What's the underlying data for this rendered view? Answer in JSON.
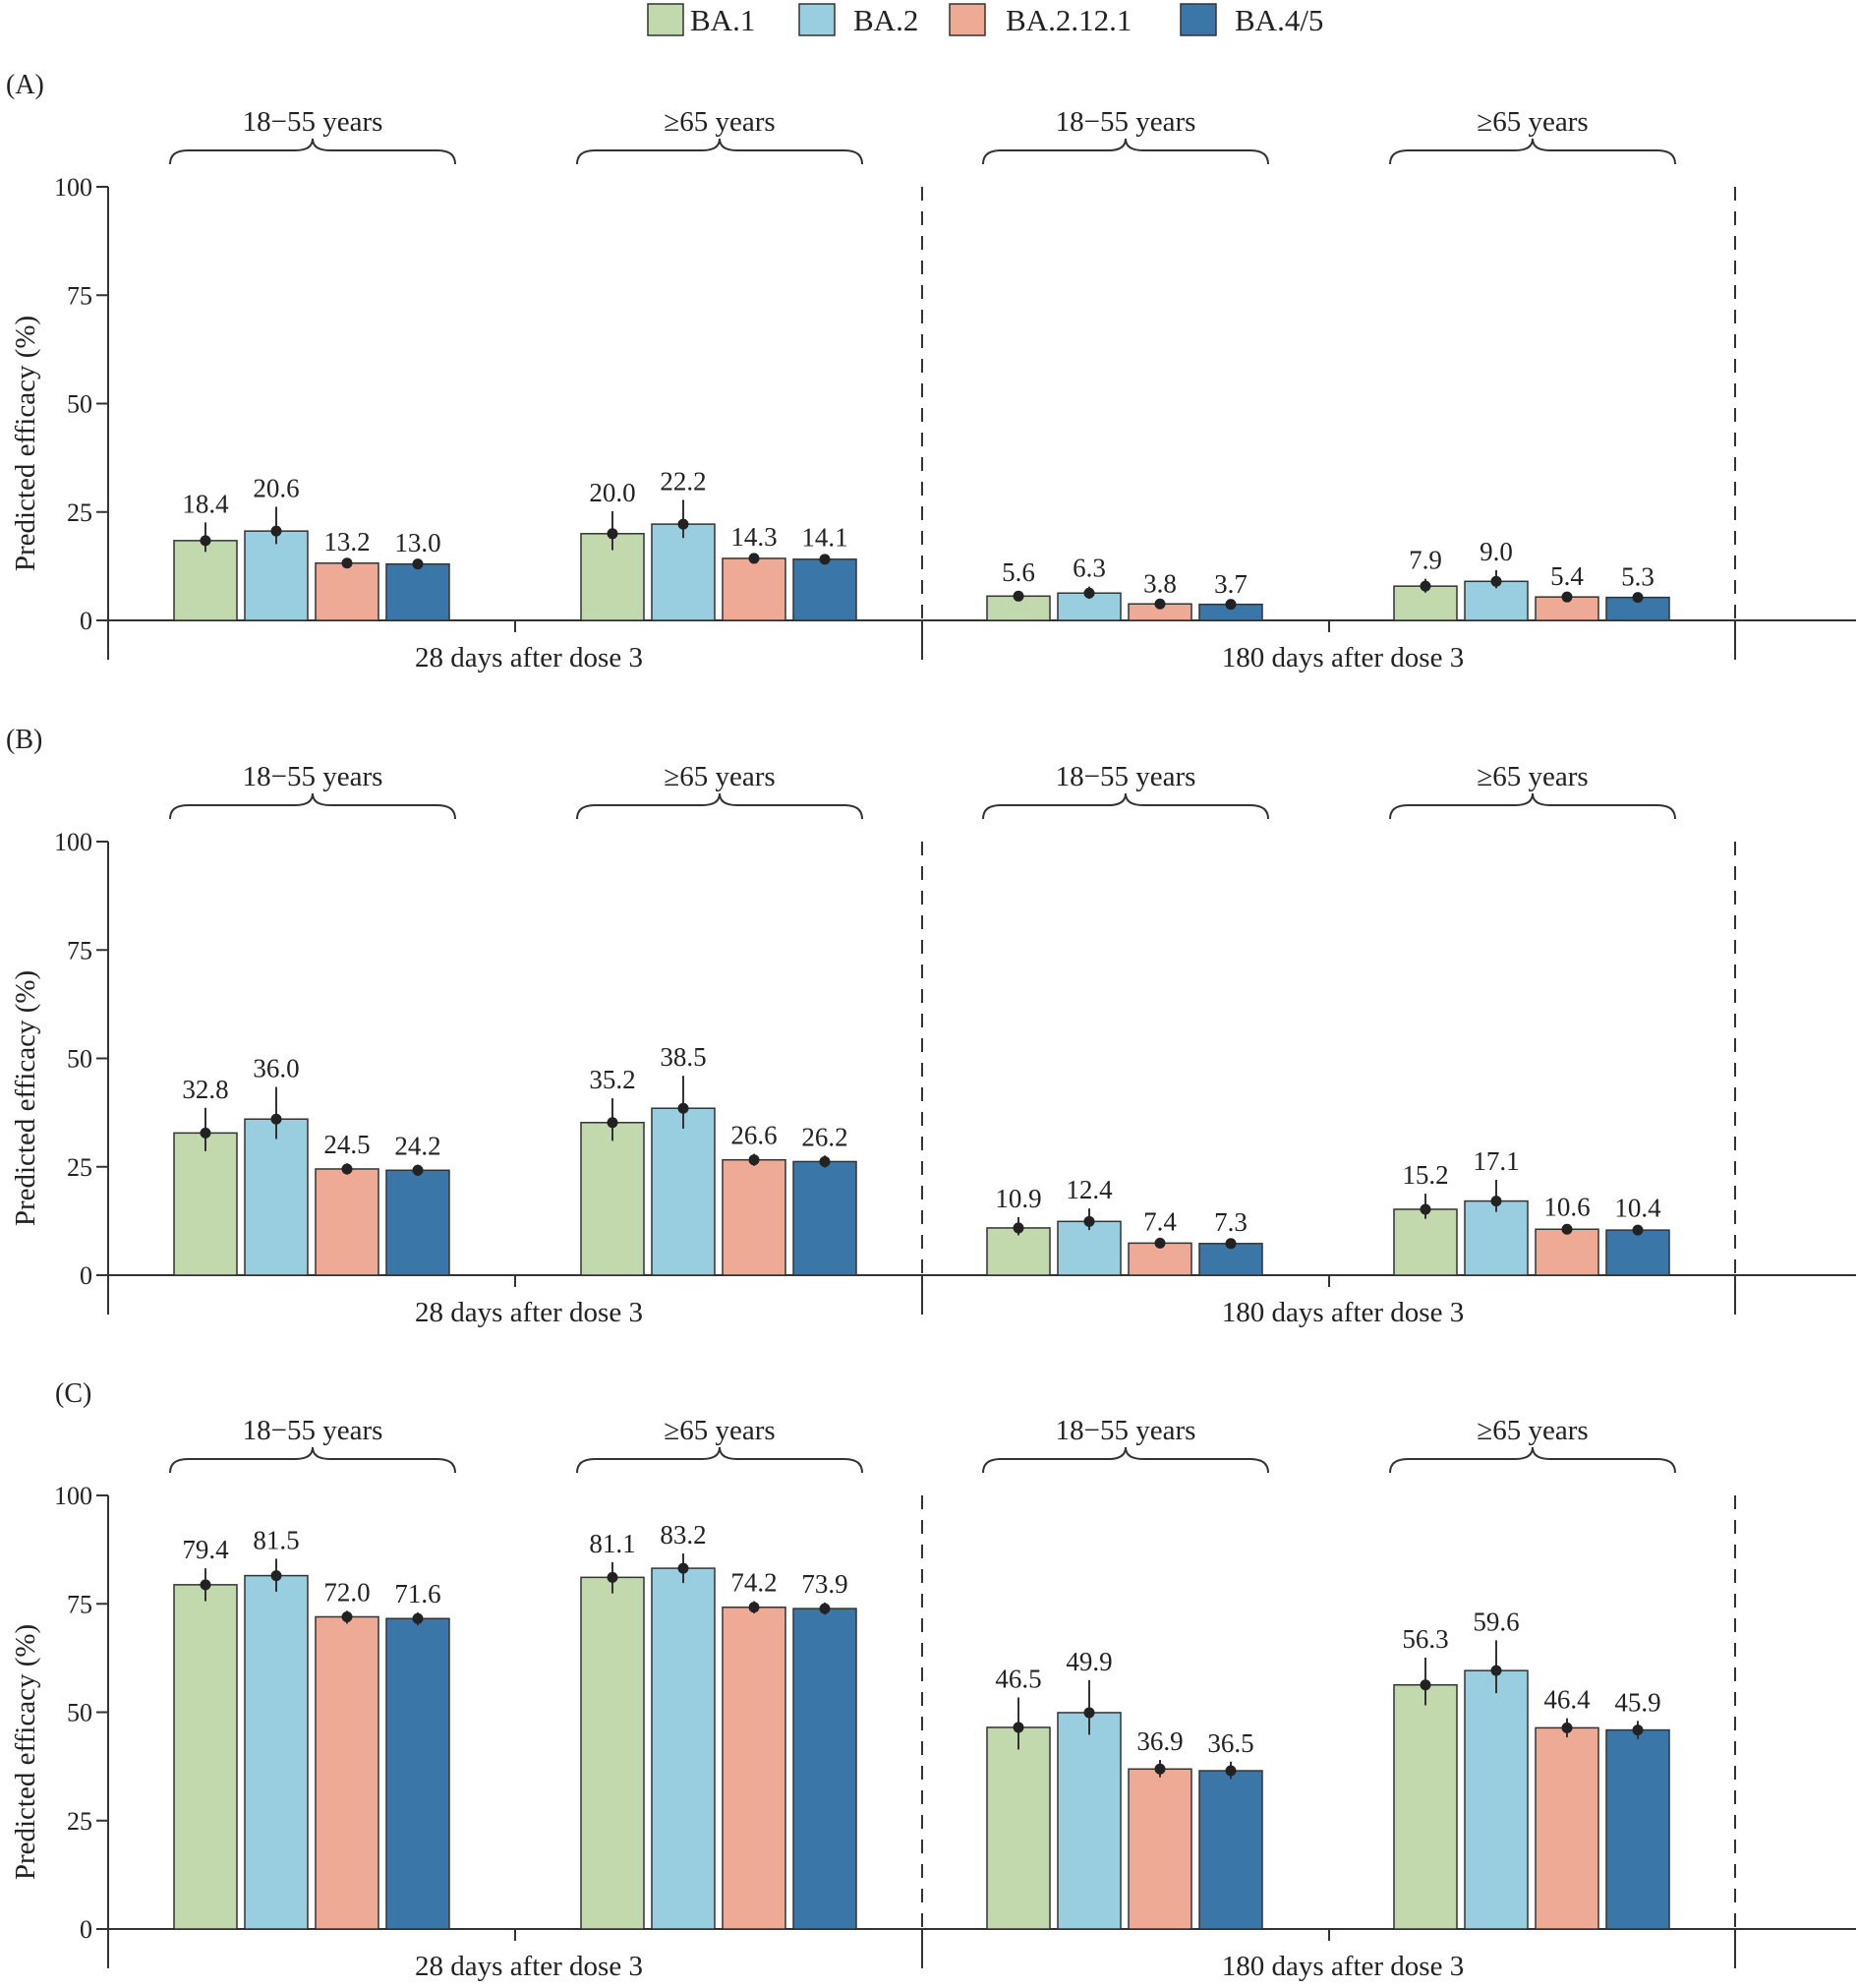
{
  "chart_data": {
    "type": "bar",
    "legend": {
      "placement": "top-center",
      "entries": [
        {
          "name": "BA.1",
          "color": "#c2d9ad"
        },
        {
          "name": "BA.2",
          "color": "#99cde0"
        },
        {
          "name": "BA.2.12.1",
          "color": "#eeaa95"
        },
        {
          "name": "BA.4/5",
          "color": "#3a77a8"
        }
      ]
    },
    "ylabel": "Predicted efficacy (%)",
    "ylim": [
      0,
      100
    ],
    "yticks": [
      0,
      25,
      50,
      75,
      100
    ],
    "sections": [
      "28 days after dose 3",
      "180 days after dose 3"
    ],
    "age_groups": [
      "18−55 years",
      "≥65 years"
    ],
    "panels": [
      {
        "label": "(A)",
        "groups": [
          {
            "section": "28 days after dose 3",
            "age": "18−55 years",
            "values": [
              18.4,
              20.6,
              13.2,
              13.0
            ],
            "ci": [
              [
                15.8,
                22.6
              ],
              [
                17.6,
                26.2
              ],
              [
                12.6,
                13.8
              ],
              [
                12.4,
                13.6
              ]
            ]
          },
          {
            "section": "28 days after dose 3",
            "age": "≥65 years",
            "values": [
              20.0,
              22.2,
              14.3,
              14.1
            ],
            "ci": [
              [
                16.2,
                25.2
              ],
              [
                19.0,
                27.8
              ],
              [
                13.6,
                15.0
              ],
              [
                13.4,
                14.8
              ]
            ]
          },
          {
            "section": "180 days after dose 3",
            "age": "18−55 years",
            "values": [
              5.6,
              6.3,
              3.8,
              3.7
            ],
            "ci": [
              [
                4.6,
                6.8
              ],
              [
                5.0,
                7.8
              ],
              [
                3.4,
                4.2
              ],
              [
                3.3,
                4.1
              ]
            ]
          },
          {
            "section": "180 days after dose 3",
            "age": "≥65 years",
            "values": [
              7.9,
              9.0,
              5.4,
              5.3
            ],
            "ci": [
              [
                6.4,
                9.6
              ],
              [
                7.4,
                11.6
              ],
              [
                4.9,
                5.9
              ],
              [
                4.8,
                5.8
              ]
            ]
          }
        ]
      },
      {
        "label": "(B)",
        "groups": [
          {
            "section": "28 days after dose 3",
            "age": "18−55 years",
            "values": [
              32.8,
              36.0,
              24.5,
              24.2
            ],
            "ci": [
              [
                28.6,
                38.6
              ],
              [
                31.4,
                43.4
              ],
              [
                23.2,
                25.8
              ],
              [
                22.9,
                25.5
              ]
            ]
          },
          {
            "section": "28 days after dose 3",
            "age": "≥65 years",
            "values": [
              35.2,
              38.5,
              26.6,
              26.2
            ],
            "ci": [
              [
                31.0,
                40.8
              ],
              [
                33.8,
                46.0
              ],
              [
                25.2,
                28.0
              ],
              [
                24.8,
                27.6
              ]
            ]
          },
          {
            "section": "180 days after dose 3",
            "age": "18−55 years",
            "values": [
              10.9,
              12.4,
              7.4,
              7.3
            ],
            "ci": [
              [
                9.2,
                13.4
              ],
              [
                10.4,
                15.4
              ],
              [
                6.8,
                8.0
              ],
              [
                6.7,
                7.9
              ]
            ]
          },
          {
            "section": "180 days after dose 3",
            "age": "≥65 years",
            "values": [
              15.2,
              17.1,
              10.6,
              10.4
            ],
            "ci": [
              [
                13.0,
                18.8
              ],
              [
                14.6,
                22.0
              ],
              [
                9.8,
                11.4
              ],
              [
                9.6,
                11.2
              ]
            ]
          }
        ]
      },
      {
        "label": "(C)",
        "groups": [
          {
            "section": "28 days after dose 3",
            "age": "18−55 years",
            "values": [
              79.4,
              81.5,
              72.0,
              71.6
            ],
            "ci": [
              [
                75.6,
                83.2
              ],
              [
                77.8,
                85.4
              ],
              [
                70.4,
                73.4
              ],
              [
                70.0,
                73.0
              ]
            ]
          },
          {
            "section": "28 days after dose 3",
            "age": "≥65 years",
            "values": [
              81.1,
              83.2,
              74.2,
              73.9
            ],
            "ci": [
              [
                77.4,
                84.6
              ],
              [
                79.8,
                86.6
              ],
              [
                72.8,
                75.6
              ],
              [
                72.5,
                75.3
              ]
            ]
          },
          {
            "section": "180 days after dose 3",
            "age": "18−55 years",
            "values": [
              46.5,
              49.9,
              36.9,
              36.5
            ],
            "ci": [
              [
                41.4,
                53.4
              ],
              [
                44.8,
                57.4
              ],
              [
                35.0,
                39.0
              ],
              [
                34.6,
                38.6
              ]
            ]
          },
          {
            "section": "180 days after dose 3",
            "age": "≥65 years",
            "values": [
              56.3,
              59.6,
              46.4,
              45.9
            ],
            "ci": [
              [
                51.6,
                62.6
              ],
              [
                54.4,
                66.6
              ],
              [
                44.2,
                48.6
              ],
              [
                43.8,
                48.0
              ]
            ]
          }
        ]
      }
    ]
  }
}
